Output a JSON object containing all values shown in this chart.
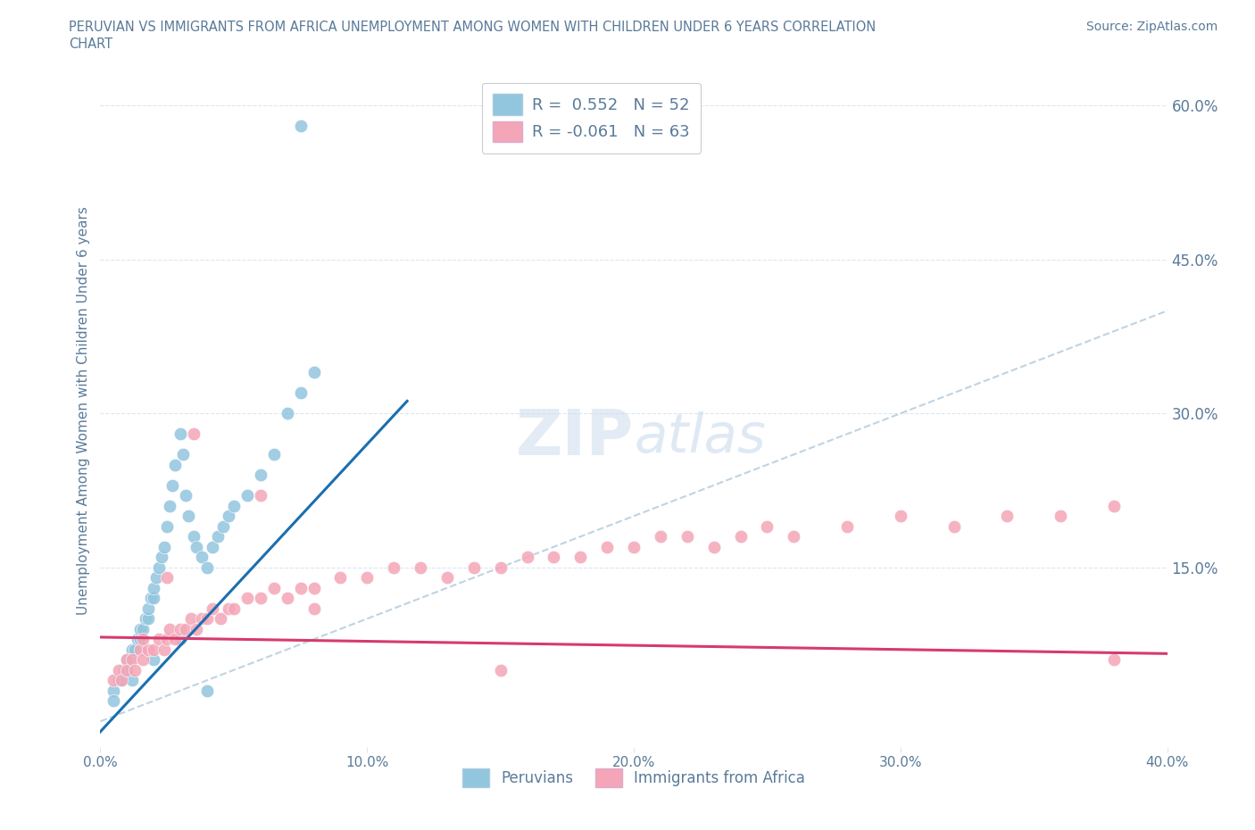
{
  "title_line1": "PERUVIAN VS IMMIGRANTS FROM AFRICA UNEMPLOYMENT AMONG WOMEN WITH CHILDREN UNDER 6 YEARS CORRELATION",
  "title_line2": "CHART",
  "source_text": "Source: ZipAtlas.com",
  "ylabel": "Unemployment Among Women with Children Under 6 years",
  "xlim": [
    0.0,
    0.4
  ],
  "ylim": [
    -0.025,
    0.63
  ],
  "ytick_right": [
    0.15,
    0.3,
    0.45,
    0.6
  ],
  "blue_color": "#92c5de",
  "pink_color": "#f4a6b8",
  "blue_line_color": "#1a6faf",
  "pink_line_color": "#d63a6e",
  "diag_line_color": "#b8cfe0",
  "R_blue": 0.552,
  "N_blue": 52,
  "R_pink": -0.061,
  "N_pink": 63,
  "legend_label_blue": "Peruvians",
  "legend_label_pink": "Immigrants from Africa",
  "watermark_zip": "ZIP",
  "watermark_atlas": "atlas",
  "background_color": "#ffffff",
  "grid_color": "#dce6f0",
  "title_color": "#5a7a9a",
  "axis_color": "#5a7a9a",
  "blue_x": [
    0.005,
    0.007,
    0.008,
    0.009,
    0.01,
    0.01,
    0.011,
    0.012,
    0.013,
    0.014,
    0.015,
    0.015,
    0.016,
    0.017,
    0.018,
    0.018,
    0.019,
    0.02,
    0.02,
    0.021,
    0.022,
    0.023,
    0.024,
    0.025,
    0.026,
    0.027,
    0.028,
    0.03,
    0.031,
    0.032,
    0.033,
    0.035,
    0.036,
    0.038,
    0.04,
    0.042,
    0.044,
    0.046,
    0.048,
    0.05,
    0.055,
    0.06,
    0.065,
    0.07,
    0.075,
    0.08,
    0.005,
    0.012,
    0.02,
    0.03,
    0.04,
    0.075
  ],
  "blue_y": [
    0.03,
    0.04,
    0.04,
    0.05,
    0.05,
    0.06,
    0.06,
    0.07,
    0.07,
    0.08,
    0.08,
    0.09,
    0.09,
    0.1,
    0.1,
    0.11,
    0.12,
    0.12,
    0.13,
    0.14,
    0.15,
    0.16,
    0.17,
    0.19,
    0.21,
    0.23,
    0.25,
    0.28,
    0.26,
    0.22,
    0.2,
    0.18,
    0.17,
    0.16,
    0.15,
    0.17,
    0.18,
    0.19,
    0.2,
    0.21,
    0.22,
    0.24,
    0.26,
    0.3,
    0.32,
    0.34,
    0.02,
    0.04,
    0.06,
    0.08,
    0.03,
    0.58
  ],
  "pink_x": [
    0.005,
    0.007,
    0.008,
    0.01,
    0.01,
    0.012,
    0.013,
    0.015,
    0.016,
    0.018,
    0.02,
    0.022,
    0.024,
    0.025,
    0.026,
    0.028,
    0.03,
    0.032,
    0.034,
    0.036,
    0.038,
    0.04,
    0.042,
    0.045,
    0.048,
    0.05,
    0.055,
    0.06,
    0.065,
    0.07,
    0.075,
    0.08,
    0.09,
    0.1,
    0.11,
    0.12,
    0.13,
    0.14,
    0.15,
    0.16,
    0.17,
    0.18,
    0.19,
    0.2,
    0.21,
    0.22,
    0.23,
    0.24,
    0.25,
    0.26,
    0.28,
    0.3,
    0.32,
    0.34,
    0.36,
    0.38,
    0.016,
    0.025,
    0.035,
    0.06,
    0.08,
    0.15,
    0.38
  ],
  "pink_y": [
    0.04,
    0.05,
    0.04,
    0.06,
    0.05,
    0.06,
    0.05,
    0.07,
    0.06,
    0.07,
    0.07,
    0.08,
    0.07,
    0.08,
    0.09,
    0.08,
    0.09,
    0.09,
    0.1,
    0.09,
    0.1,
    0.1,
    0.11,
    0.1,
    0.11,
    0.11,
    0.12,
    0.12,
    0.13,
    0.12,
    0.13,
    0.13,
    0.14,
    0.14,
    0.15,
    0.15,
    0.14,
    0.15,
    0.15,
    0.16,
    0.16,
    0.16,
    0.17,
    0.17,
    0.18,
    0.18,
    0.17,
    0.18,
    0.19,
    0.18,
    0.19,
    0.2,
    0.19,
    0.2,
    0.2,
    0.21,
    0.08,
    0.14,
    0.28,
    0.22,
    0.11,
    0.05,
    0.06
  ]
}
